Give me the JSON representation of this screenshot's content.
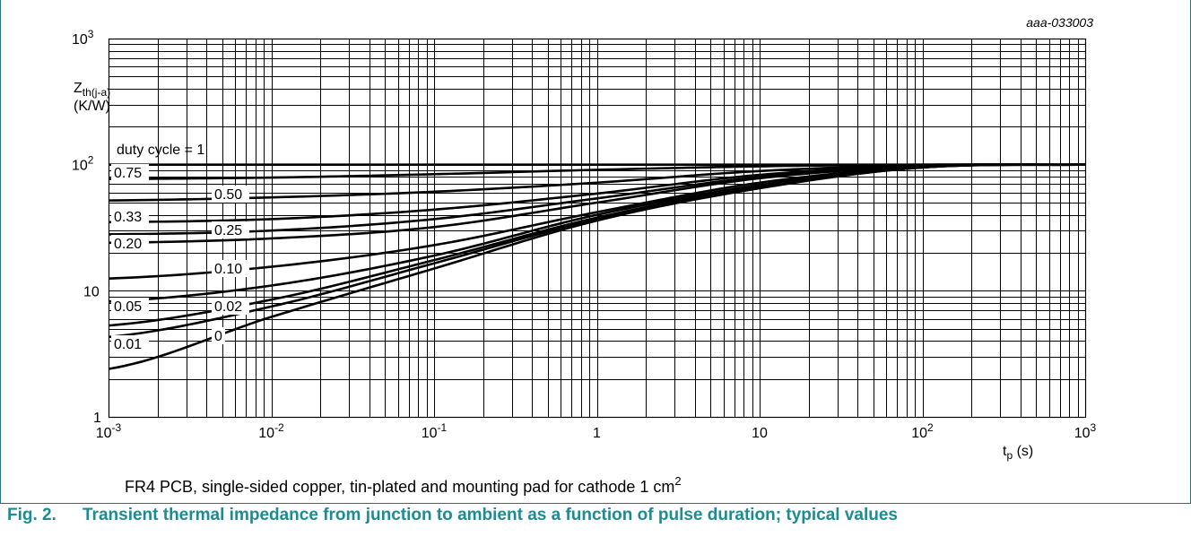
{
  "chart_data": {
    "type": "line",
    "xscale": "log",
    "yscale": "log",
    "xlim": [
      0.001,
      1000
    ],
    "ylim": [
      1,
      1000
    ],
    "grid": true,
    "code": "aaa-033003",
    "ylabel": {
      "main": "Z",
      "sub": "th(j-a)",
      "unit": "(K/W)"
    },
    "xlabel": {
      "main": "t",
      "sub": "p",
      "unit": " (s)"
    },
    "x_ticks": [
      {
        "base": "10",
        "exp": "-3"
      },
      {
        "base": "10",
        "exp": "-2"
      },
      {
        "base": "10",
        "exp": "-1"
      },
      {
        "base": "1",
        "exp": ""
      },
      {
        "base": "10",
        "exp": ""
      },
      {
        "base": "10",
        "exp": "2"
      },
      {
        "base": "10",
        "exp": "3"
      }
    ],
    "y_ticks": [
      {
        "base": "1",
        "exp": ""
      },
      {
        "base": "10",
        "exp": ""
      },
      {
        "base": "10",
        "exp": "2"
      },
      {
        "base": "10",
        "exp": "3"
      }
    ],
    "note": {
      "text": "FR4 PCB, single-sided copper, tin-plated and mounting pad for cathode 1 cm",
      "sup": "2"
    },
    "series": [
      {
        "name": "duty cycle = 1",
        "x": [
          0.001,
          0.01,
          0.1,
          1,
          10,
          100,
          1000
        ],
        "y": [
          100,
          100,
          100,
          100,
          100,
          100,
          100
        ]
      },
      {
        "name": "0.75",
        "x": [
          0.001,
          0.01,
          0.1,
          1,
          10,
          100,
          1000
        ],
        "y": [
          77,
          79,
          84,
          91,
          97,
          100,
          100
        ]
      },
      {
        "name": "0.50",
        "x": [
          0.001,
          0.01,
          0.1,
          1,
          10,
          100,
          1000
        ],
        "y": [
          52,
          55,
          61,
          72,
          89,
          99,
          100
        ]
      },
      {
        "name": "0.33",
        "x": [
          0.001,
          0.01,
          0.1,
          1,
          10,
          100,
          1000
        ],
        "y": [
          35,
          37,
          44,
          59,
          83,
          98,
          100
        ]
      },
      {
        "name": "0.25",
        "x": [
          0.001,
          0.01,
          0.1,
          1,
          10,
          100,
          1000
        ],
        "y": [
          28,
          30,
          37,
          54,
          80,
          98,
          100
        ]
      },
      {
        "name": "0.20",
        "x": [
          0.001,
          0.01,
          0.1,
          1,
          10,
          100,
          1000
        ],
        "y": [
          24,
          26,
          32,
          50,
          78,
          97,
          100
        ]
      },
      {
        "name": "0.10",
        "x": [
          0.001,
          0.01,
          0.1,
          1,
          10,
          100,
          1000
        ],
        "y": [
          12.5,
          15.5,
          23,
          42,
          72,
          96,
          100
        ]
      },
      {
        "name": "0.05",
        "x": [
          0.001,
          0.01,
          0.1,
          1,
          10,
          100,
          1000
        ],
        "y": [
          8.2,
          11,
          19,
          40,
          69,
          96,
          100
        ]
      },
      {
        "name": "0.02",
        "x": [
          0.001,
          0.01,
          0.1,
          1,
          10,
          100,
          1000
        ],
        "y": [
          5.3,
          8.5,
          17.5,
          38,
          67,
          95,
          100
        ]
      },
      {
        "name": "0.01",
        "x": [
          0.001,
          0.01,
          0.1,
          1,
          10,
          100,
          1000
        ],
        "y": [
          4.3,
          7.5,
          16.5,
          37,
          66,
          95,
          100
        ]
      },
      {
        "name": "0",
        "x": [
          0.001,
          0.01,
          0.1,
          1,
          10,
          100,
          1000
        ],
        "y": [
          2.4,
          6.2,
          15,
          36,
          65,
          95,
          100
        ]
      }
    ]
  },
  "caption": {
    "number": "Fig. 2.",
    "text": "Transient thermal impedance from junction to ambient as a function of pulse duration; typical values"
  }
}
